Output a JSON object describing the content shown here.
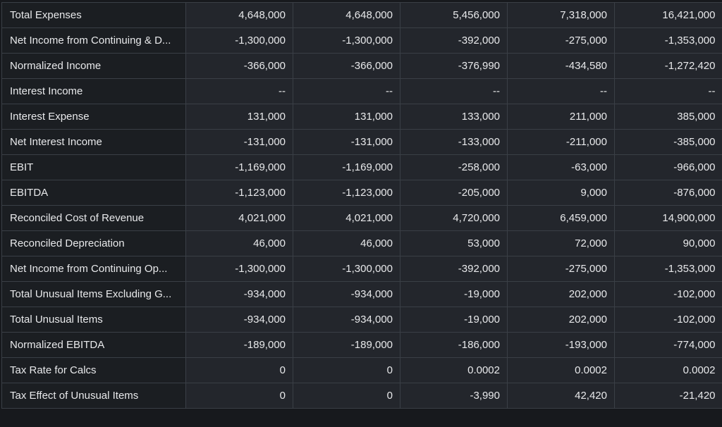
{
  "table": {
    "rows": [
      {
        "label": "Total Expenses",
        "values": [
          "4,648,000",
          "4,648,000",
          "5,456,000",
          "7,318,000",
          "16,421,000"
        ]
      },
      {
        "label": "Net Income from Continuing & D...",
        "values": [
          "-1,300,000",
          "-1,300,000",
          "-392,000",
          "-275,000",
          "-1,353,000"
        ]
      },
      {
        "label": "Normalized Income",
        "values": [
          "-366,000",
          "-366,000",
          "-376,990",
          "-434,580",
          "-1,272,420"
        ]
      },
      {
        "label": "Interest Income",
        "values": [
          "--",
          "--",
          "--",
          "--",
          "--"
        ]
      },
      {
        "label": "Interest Expense",
        "values": [
          "131,000",
          "131,000",
          "133,000",
          "211,000",
          "385,000"
        ]
      },
      {
        "label": "Net Interest Income",
        "values": [
          "-131,000",
          "-131,000",
          "-133,000",
          "-211,000",
          "-385,000"
        ]
      },
      {
        "label": "EBIT",
        "values": [
          "-1,169,000",
          "-1,169,000",
          "-258,000",
          "-63,000",
          "-966,000"
        ]
      },
      {
        "label": "EBITDA",
        "values": [
          "-1,123,000",
          "-1,123,000",
          "-205,000",
          "9,000",
          "-876,000"
        ]
      },
      {
        "label": "Reconciled Cost of Revenue",
        "values": [
          "4,021,000",
          "4,021,000",
          "4,720,000",
          "6,459,000",
          "14,900,000"
        ]
      },
      {
        "label": "Reconciled Depreciation",
        "values": [
          "46,000",
          "46,000",
          "53,000",
          "72,000",
          "90,000"
        ]
      },
      {
        "label": "Net Income from Continuing Op...",
        "values": [
          "-1,300,000",
          "-1,300,000",
          "-392,000",
          "-275,000",
          "-1,353,000"
        ]
      },
      {
        "label": "Total Unusual Items Excluding G...",
        "values": [
          "-934,000",
          "-934,000",
          "-19,000",
          "202,000",
          "-102,000"
        ]
      },
      {
        "label": "Total Unusual Items",
        "values": [
          "-934,000",
          "-934,000",
          "-19,000",
          "202,000",
          "-102,000"
        ]
      },
      {
        "label": "Normalized EBITDA",
        "values": [
          "-189,000",
          "-189,000",
          "-186,000",
          "-193,000",
          "-774,000"
        ]
      },
      {
        "label": "Tax Rate for Calcs",
        "values": [
          "0",
          "0",
          "0.0002",
          "0.0002",
          "0.0002"
        ]
      },
      {
        "label": "Tax Effect of Unusual Items",
        "values": [
          "0",
          "0",
          "-3,990",
          "42,420",
          "-21,420"
        ]
      }
    ]
  },
  "colors": {
    "page_background": "#17191d",
    "label_cell_background": "#1b1e22",
    "value_cell_background": "#23262c",
    "grid_line": "#3a3f46",
    "text": "#e8e9eb"
  }
}
